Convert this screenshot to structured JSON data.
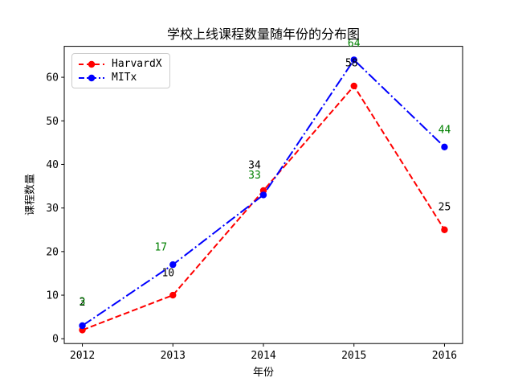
{
  "window": {
    "background": "#ffffff"
  },
  "chart_data": {
    "type": "line",
    "title": "学校上线课程数量随年份的分布图",
    "xlabel": "年份",
    "ylabel": "课程数量",
    "x": [
      2012,
      2013,
      2014,
      2015,
      2016
    ],
    "xticks": [
      "2012",
      "2013",
      "2014",
      "2015",
      "2016"
    ],
    "yticks": [
      0,
      10,
      20,
      30,
      40,
      50,
      60
    ],
    "xlim": [
      2011.8,
      2016.2
    ],
    "ylim": [
      -1.1,
      67.1
    ],
    "grid": false,
    "legend_position": "upper left",
    "series": [
      {
        "name": "HarvardX",
        "values": [
          2,
          10,
          34,
          58,
          25
        ],
        "color": "#ff0000",
        "linestyle": "dashed",
        "marker": "circle",
        "point_labels": [
          "2",
          "10",
          "34",
          "58",
          "25"
        ],
        "point_label_color": "#000000"
      },
      {
        "name": "MITx",
        "values": [
          3,
          17,
          33,
          64,
          44
        ],
        "color": "#0000ff",
        "linestyle": "dashdot",
        "marker": "circle",
        "point_labels": [
          "3",
          "17",
          "33",
          "64",
          "44"
        ],
        "point_label_color": "#008000"
      }
    ],
    "axis_color": "#000000",
    "tick_label_color": "#000000"
  }
}
